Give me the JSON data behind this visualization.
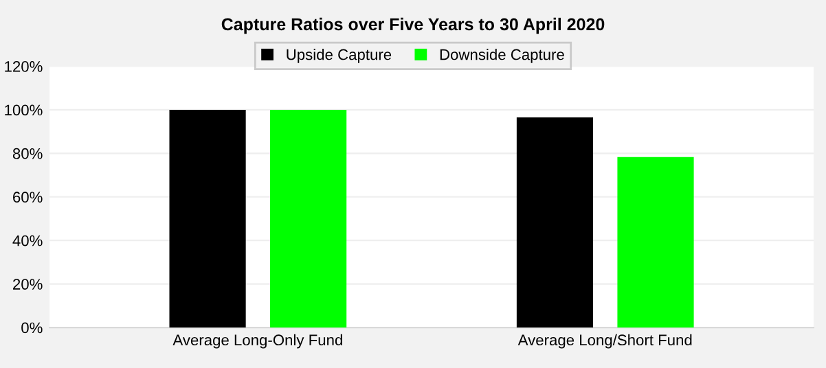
{
  "chart_data": {
    "type": "bar",
    "title": "Capture Ratios over Five Years to 30 April 2020",
    "categories": [
      "Average Long-Only Fund",
      "Average Long/Short Fund"
    ],
    "series": [
      {
        "name": "Upside Capture",
        "color": "#000000",
        "values": [
          100,
          96.5
        ]
      },
      {
        "name": "Downside Capture",
        "color": "#00ff00",
        "values": [
          100,
          78.3
        ]
      }
    ],
    "ylim": [
      0,
      120
    ],
    "yticks": [
      {
        "value": 0,
        "label": "0%"
      },
      {
        "value": 20,
        "label": "20%"
      },
      {
        "value": 40,
        "label": "40%"
      },
      {
        "value": 60,
        "label": "60%"
      },
      {
        "value": 80,
        "label": "80%"
      },
      {
        "value": 100,
        "label": "100%"
      },
      {
        "value": 120,
        "label": "120%"
      }
    ],
    "grid": "y",
    "legend": "top"
  }
}
